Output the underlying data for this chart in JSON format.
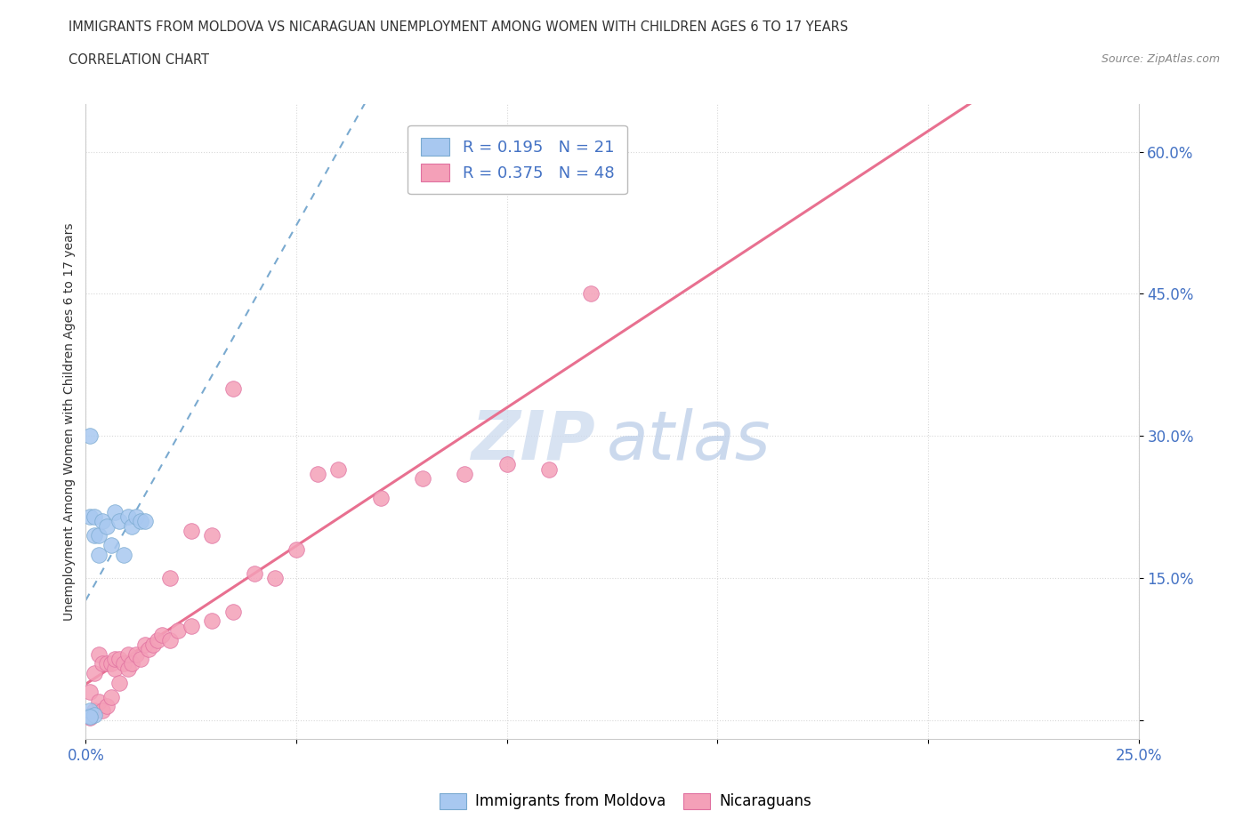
{
  "title1": "IMMIGRANTS FROM MOLDOVA VS NICARAGUAN UNEMPLOYMENT AMONG WOMEN WITH CHILDREN AGES 6 TO 17 YEARS",
  "title2": "CORRELATION CHART",
  "source": "Source: ZipAtlas.com",
  "ylabel": "Unemployment Among Women with Children Ages 6 to 17 years",
  "xlim": [
    0.0,
    0.25
  ],
  "ylim": [
    -0.02,
    0.65
  ],
  "xticks": [
    0.0,
    0.05,
    0.1,
    0.15,
    0.2,
    0.25
  ],
  "yticks": [
    0.0,
    0.15,
    0.3,
    0.45,
    0.6
  ],
  "xtick_labels": [
    "0.0%",
    "",
    "",
    "",
    "",
    "25.0%"
  ],
  "ytick_labels": [
    "",
    "15.0%",
    "30.0%",
    "45.0%",
    "60.0%"
  ],
  "color_moldova": "#a8c8f0",
  "color_nicaragua": "#f4a0b8",
  "color_moldova_edge": "#7aaad0",
  "color_nicaragua_edge": "#e070a0",
  "color_line_moldova": "#7aaad0",
  "color_line_nicaragua": "#e87090",
  "watermark_zip": "#c8d8ee",
  "watermark_atlas": "#b8cce8",
  "background_color": "#ffffff",
  "moldova_x": [
    0.001,
    0.001,
    0.001,
    0.002,
    0.002,
    0.003,
    0.003,
    0.004,
    0.005,
    0.006,
    0.007,
    0.008,
    0.009,
    0.01,
    0.011,
    0.012,
    0.013,
    0.014,
    0.001,
    0.002,
    0.001
  ],
  "moldova_y": [
    0.005,
    0.215,
    0.3,
    0.195,
    0.215,
    0.175,
    0.195,
    0.21,
    0.205,
    0.185,
    0.22,
    0.21,
    0.175,
    0.215,
    0.205,
    0.215,
    0.21,
    0.21,
    0.01,
    0.006,
    0.004
  ],
  "nicaragua_x": [
    0.001,
    0.001,
    0.002,
    0.002,
    0.003,
    0.003,
    0.004,
    0.004,
    0.005,
    0.005,
    0.006,
    0.006,
    0.007,
    0.007,
    0.008,
    0.008,
    0.009,
    0.01,
    0.01,
    0.011,
    0.012,
    0.013,
    0.014,
    0.015,
    0.016,
    0.017,
    0.018,
    0.02,
    0.02,
    0.022,
    0.025,
    0.025,
    0.03,
    0.03,
    0.035,
    0.035,
    0.04,
    0.045,
    0.05,
    0.055,
    0.06,
    0.07,
    0.08,
    0.09,
    0.1,
    0.11,
    0.12,
    0.001
  ],
  "nicaragua_y": [
    0.005,
    0.03,
    0.01,
    0.05,
    0.02,
    0.07,
    0.01,
    0.06,
    0.015,
    0.06,
    0.025,
    0.06,
    0.055,
    0.065,
    0.04,
    0.065,
    0.06,
    0.055,
    0.07,
    0.06,
    0.07,
    0.065,
    0.08,
    0.075,
    0.08,
    0.085,
    0.09,
    0.085,
    0.15,
    0.095,
    0.1,
    0.2,
    0.105,
    0.195,
    0.115,
    0.35,
    0.155,
    0.15,
    0.18,
    0.26,
    0.265,
    0.235,
    0.255,
    0.26,
    0.27,
    0.265,
    0.45,
    0.003
  ]
}
